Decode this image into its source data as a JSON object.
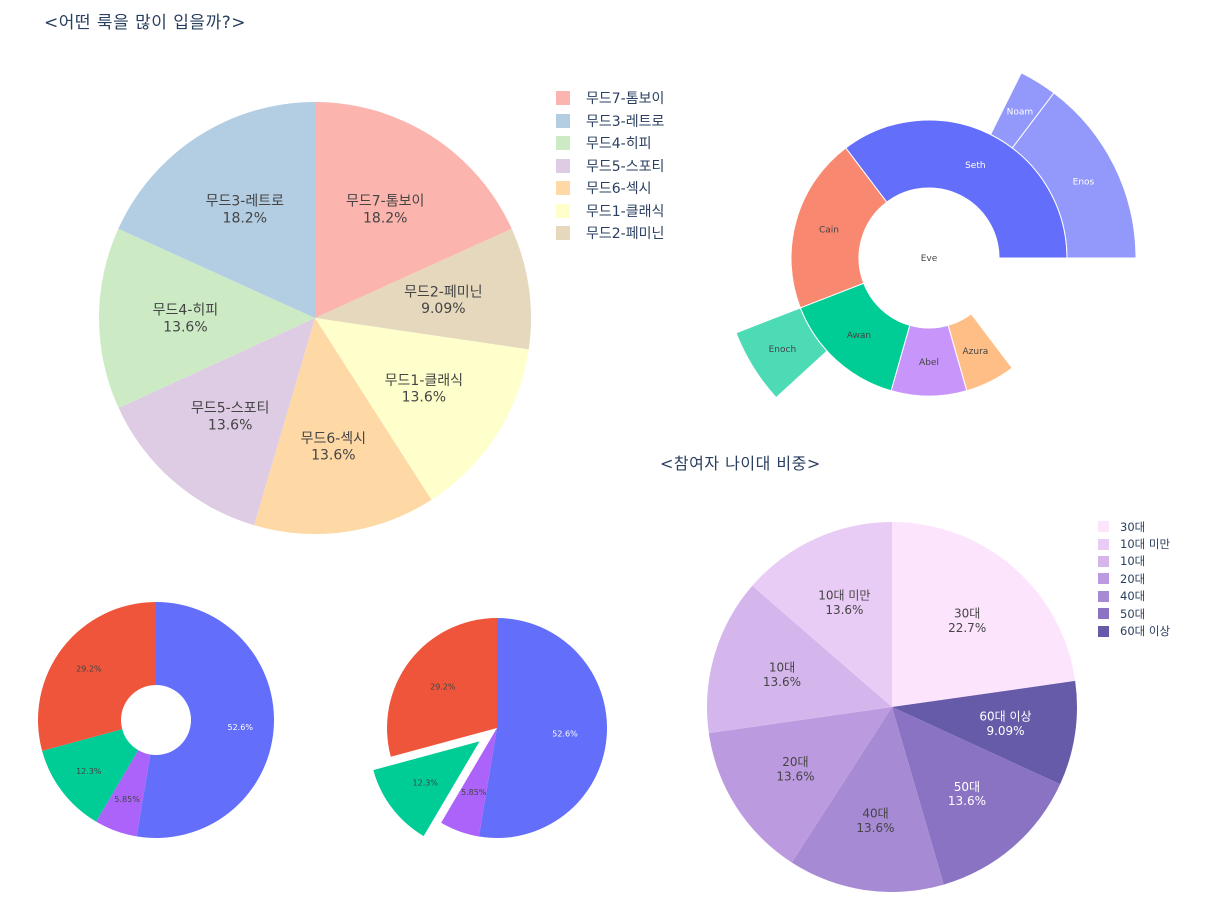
{
  "titles": {
    "style_question": "<어떤 룩을 많이 입을까?>",
    "age_share": "<참여자 나이대 비중>"
  },
  "chart_data": [
    {
      "id": "style_pie",
      "type": "pie",
      "title": "<어떤 룩을 많이 입을까?>",
      "center": [
        315,
        318
      ],
      "radius": 216,
      "categories": [
        "무드7-톰보이",
        "무드2-페미닌",
        "무드1-클래식",
        "무드6-섹시",
        "무드5-스포티",
        "무드4-히피",
        "무드3-레트로"
      ],
      "values": [
        18.2,
        9.09,
        13.6,
        13.6,
        13.6,
        13.6,
        18.2
      ],
      "labels": [
        "18.2%",
        "9.09%",
        "13.6%",
        "13.6%",
        "13.6%",
        "13.6%",
        "18.2%"
      ],
      "colors": [
        "#FBB4AE",
        "#E5D8BD",
        "#FFFFCC",
        "#FED9A6",
        "#DECBE4",
        "#CCEBC5",
        "#B3CDE3"
      ],
      "legend": {
        "position": "right",
        "entries": [
          "무드7-톰보이",
          "무드3-레트로",
          "무드4-히피",
          "무드5-스포티",
          "무드6-섹시",
          "무드1-클래식",
          "무드2-페미닌"
        ],
        "colors": [
          "#FBB4AE",
          "#B3CDE3",
          "#CCEBC5",
          "#DECBE4",
          "#FED9A6",
          "#FFFFCC",
          "#E5D8BD"
        ]
      }
    },
    {
      "id": "family_sunburst",
      "type": "sunburst",
      "center": [
        929,
        258
      ],
      "radii": [
        70,
        138,
        207
      ],
      "root": "Eve",
      "nodes": [
        {
          "name": "Seth",
          "parent": "Eve",
          "value": 24,
          "color": "#636EFA",
          "start": 0,
          "end": 127.1,
          "ring": 1,
          "text_color": "#ffffff"
        },
        {
          "name": "Cain",
          "parent": "Eve",
          "value": 14,
          "color": "#F88870",
          "start": 127.1,
          "end": 201.2,
          "ring": 1,
          "text_color": "#444444"
        },
        {
          "name": "Awan",
          "parent": "Eve",
          "value": 10,
          "color": "#00CC96",
          "start": 201.2,
          "end": 254.1,
          "ring": 1,
          "text_color": "#444444"
        },
        {
          "name": "Abel",
          "parent": "Eve",
          "value": 6,
          "color": "#C896FB",
          "start": 254.1,
          "end": 285.9,
          "ring": 1,
          "text_color": "#444444"
        },
        {
          "name": "Azura",
          "parent": "Eve",
          "value": 4,
          "color": "#FFBE85",
          "start": 285.9,
          "end": 307.1,
          "ring": 1,
          "text_color": "#444444"
        },
        {
          "name": "Enos",
          "parent": "Seth",
          "value": 10,
          "color": "#9299FB",
          "start": 0,
          "end": 52.9,
          "ring": 2,
          "text_color": "#ffffff"
        },
        {
          "name": "Noam",
          "parent": "Seth",
          "value": 2,
          "color": "#9299FB",
          "start": 52.9,
          "end": 63.5,
          "ring": 2,
          "text_color": "#ffffff"
        },
        {
          "name": "Enoch",
          "parent": "Awan",
          "value": 4,
          "color": "#4DDBB5",
          "start": 201.2,
          "end": 222.4,
          "ring": 2,
          "text_color": "#444444"
        }
      ]
    },
    {
      "id": "donut_chart",
      "type": "pie",
      "hole": true,
      "center": [
        156,
        720
      ],
      "radius": 118,
      "hole_radius": 35,
      "values": [
        52.6,
        5.85,
        12.3,
        29.2
      ],
      "labels": [
        "52.6%",
        "5.85%",
        "12.3%",
        "29.2%"
      ],
      "colors": [
        "#636EFA",
        "#AB63FA",
        "#00CC96",
        "#EF553B"
      ],
      "text_colors": [
        "#ffffff",
        "#444444",
        "#444444",
        "#444444"
      ]
    },
    {
      "id": "pulled_pie",
      "type": "pie",
      "center": [
        497,
        728
      ],
      "radius": 110,
      "values": [
        52.6,
        5.85,
        12.3,
        29.2
      ],
      "labels": [
        "52.6%",
        "5.85%",
        "12.3%",
        "29.2%"
      ],
      "colors": [
        "#636EFA",
        "#AB63FA",
        "#00CC96",
        "#EF553B"
      ],
      "text_colors": [
        "#ffffff",
        "#444444",
        "#444444",
        "#444444"
      ],
      "pull": [
        0,
        0,
        0.2,
        0
      ]
    },
    {
      "id": "age_pie",
      "type": "pie",
      "title": "<참여자 나이대 비중>",
      "center": [
        892,
        707
      ],
      "radius": 185,
      "categories": [
        "30대",
        "60대 이상",
        "50대",
        "40대",
        "20대",
        "10대",
        "10대 미만"
      ],
      "values": [
        22.7,
        9.09,
        13.6,
        13.6,
        13.6,
        13.6,
        13.6
      ],
      "labels": [
        "22.7%",
        "9.09%",
        "13.6%",
        "13.6%",
        "13.6%",
        "13.6%",
        "13.6%"
      ],
      "colors": [
        "#FCE4FC",
        "#665BA8",
        "#8A73C3",
        "#A68AD4",
        "#BC9AE0",
        "#D5B6EC",
        "#E9CCF5"
      ],
      "text_colors": [
        "#444444",
        "#ffffff",
        "#ffffff",
        "#444444",
        "#444444",
        "#444444",
        "#444444"
      ],
      "legend": {
        "position": "right",
        "entries": [
          "30대",
          "10대 미만",
          "10대",
          "20대",
          "40대",
          "50대",
          "60대 이상"
        ],
        "colors": [
          "#FCE4FC",
          "#E9CCF5",
          "#D5B6EC",
          "#BC9AE0",
          "#A68AD4",
          "#8A73C3",
          "#665BA8"
        ]
      }
    }
  ]
}
